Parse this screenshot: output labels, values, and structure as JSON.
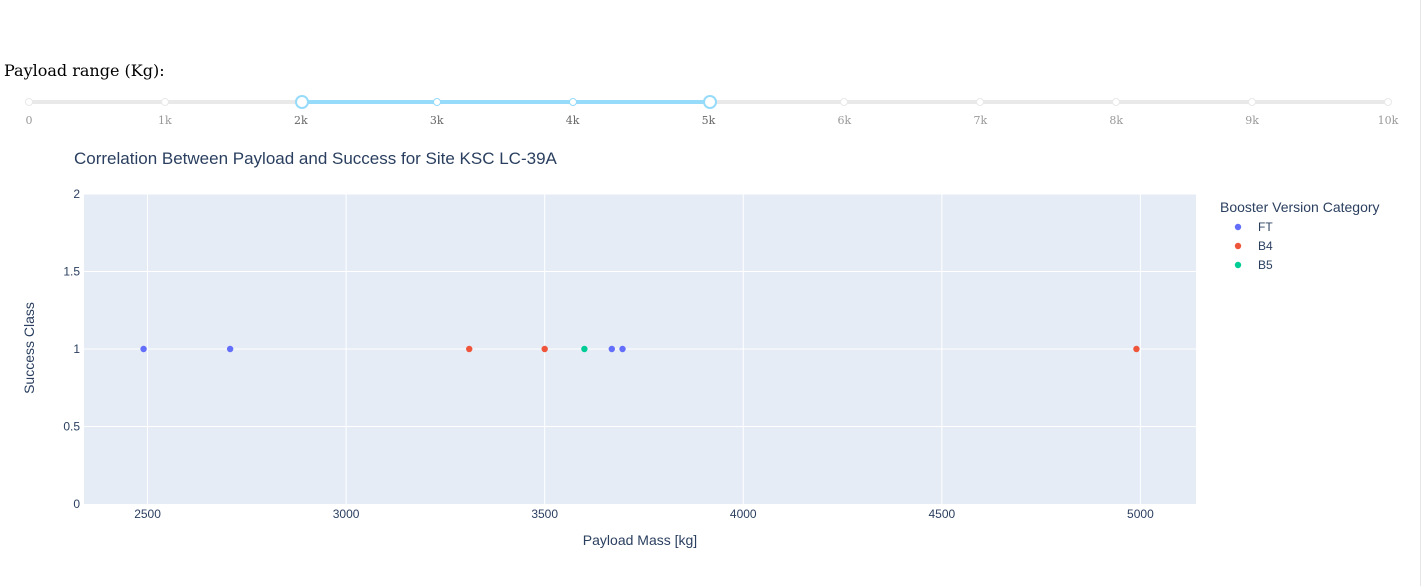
{
  "slider": {
    "label": "Payload range (Kg):",
    "min": 0,
    "max": 10000,
    "step": 1000,
    "value": [
      2000,
      5000
    ],
    "marks": [
      "0",
      "1k",
      "2k",
      "3k",
      "4k",
      "5k",
      "6k",
      "7k",
      "8k",
      "9k",
      "10k"
    ],
    "track_color": "#e9e9e9",
    "active_color": "#96dbfa"
  },
  "chart_data": {
    "type": "scatter",
    "title": "Correlation Between Payload and Success for Site KSC LC-39A",
    "xlabel": "Payload Mass [kg]",
    "ylabel": "Success Class",
    "xlim": [
      2340,
      5140
    ],
    "ylim": [
      0,
      2
    ],
    "x_ticks": [
      "2500",
      "3000",
      "3500",
      "4000",
      "4500",
      "5000"
    ],
    "y_ticks": [
      "0",
      "0.5",
      "1",
      "1.5",
      "2"
    ],
    "grid": true,
    "legend": {
      "title": "Booster Version Category",
      "position": "right"
    },
    "series": [
      {
        "name": "FT",
        "color": "#636efa",
        "points": [
          [
            2490,
            1
          ],
          [
            2708,
            1
          ],
          [
            3669,
            1
          ],
          [
            3696,
            1
          ]
        ]
      },
      {
        "name": "B4",
        "color": "#ef553b",
        "points": [
          [
            3310,
            1
          ],
          [
            3500,
            1
          ],
          [
            4990,
            1
          ]
        ]
      },
      {
        "name": "B5",
        "color": "#00cc96",
        "points": [
          [
            3600,
            1
          ]
        ]
      }
    ]
  }
}
